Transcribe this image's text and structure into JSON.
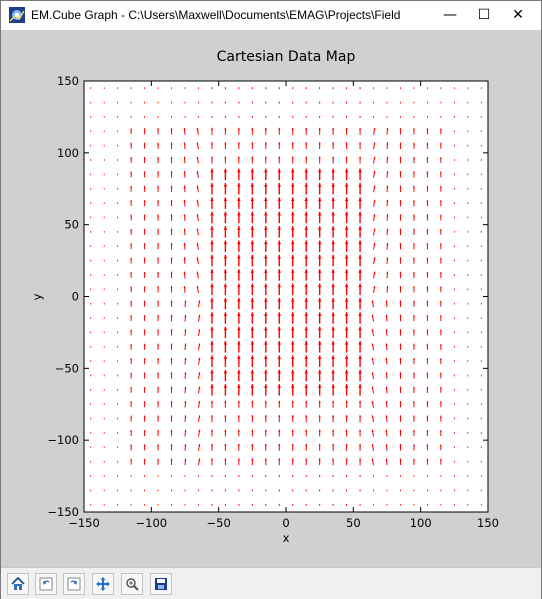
{
  "window": {
    "title": "EM.Cube Graph - C:\\Users\\Maxwell\\Documents\\EMAG\\Projects\\Field",
    "minimize_glyph": "—",
    "maximize_glyph": "☐",
    "close_glyph": "✕"
  },
  "toolbar": {
    "buttons": [
      {
        "name": "home-icon"
      },
      {
        "name": "back-icon"
      },
      {
        "name": "forward-icon"
      },
      {
        "name": "pan-icon"
      },
      {
        "name": "zoom-icon"
      },
      {
        "name": "save-icon"
      }
    ]
  },
  "chart_data": {
    "type": "quiver",
    "title": "Cartesian Data Map",
    "xlabel": "x",
    "ylabel": "y",
    "xlim": [
      -150,
      150
    ],
    "ylim": [
      -150,
      150
    ],
    "xticks": [
      -150,
      -100,
      -50,
      0,
      50,
      100,
      150
    ],
    "yticks": [
      -150,
      -100,
      -50,
      0,
      50,
      100,
      150
    ],
    "xtick_labels": [
      "−150",
      "−100",
      "−50",
      "0",
      "50",
      "100",
      "150"
    ],
    "ytick_labels": [
      "−150",
      "−100",
      "−50",
      "0",
      "50",
      "100",
      "150"
    ],
    "grid": false,
    "arrow_color": "#ff0000",
    "grid_points": {
      "x_start": -145,
      "x_end": 145,
      "y_start": -145,
      "y_end": 145,
      "step": 10
    },
    "sources": {
      "region_x": [
        -60,
        60
      ],
      "region_y": [
        -70,
        85
      ]
    }
  }
}
